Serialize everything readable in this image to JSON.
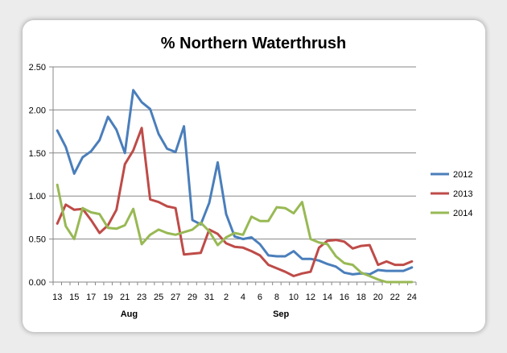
{
  "chart_data": {
    "type": "line",
    "title": "% Northern Waterthrush",
    "xlabel": "",
    "ylabel": "",
    "ylim": [
      0,
      2.5
    ],
    "y_ticks": [
      "0.00",
      "0.50",
      "1.00",
      "1.50",
      "2.00",
      "2.50"
    ],
    "x_tick_labels": [
      "13",
      "15",
      "17",
      "19",
      "21",
      "23",
      "25",
      "27",
      "29",
      "31",
      "2",
      "4",
      "6",
      "8",
      "10",
      "12",
      "14",
      "16",
      "18",
      "20",
      "22",
      "24"
    ],
    "month_labels": [
      "Aug",
      "Sep"
    ],
    "x": [
      "Aug 13",
      "Aug 14",
      "Aug 15",
      "Aug 16",
      "Aug 17",
      "Aug 18",
      "Aug 19",
      "Aug 20",
      "Aug 21",
      "Aug 22",
      "Aug 23",
      "Aug 24",
      "Aug 25",
      "Aug 26",
      "Aug 27",
      "Aug 28",
      "Aug 29",
      "Aug 30",
      "Aug 31",
      "Sep 1",
      "Sep 2",
      "Sep 3",
      "Sep 4",
      "Sep 5",
      "Sep 6",
      "Sep 7",
      "Sep 8",
      "Sep 9",
      "Sep 10",
      "Sep 11",
      "Sep 12",
      "Sep 13",
      "Sep 14",
      "Sep 15",
      "Sep 16",
      "Sep 17",
      "Sep 18",
      "Sep 19",
      "Sep 20",
      "Sep 21",
      "Sep 22",
      "Sep 23",
      "Sep 24"
    ],
    "grid": "horizontal",
    "legend_position": "right",
    "series": [
      {
        "name": "2012",
        "color": "#4a7ebb",
        "values": [
          1.76,
          1.57,
          1.26,
          1.45,
          1.52,
          1.65,
          1.92,
          1.77,
          1.5,
          2.23,
          2.09,
          2.01,
          1.72,
          1.55,
          1.51,
          1.81,
          0.72,
          0.67,
          0.92,
          1.39,
          0.79,
          0.53,
          0.5,
          0.52,
          0.44,
          0.31,
          0.3,
          0.3,
          0.36,
          0.27,
          0.27,
          0.25,
          0.21,
          0.18,
          0.11,
          0.09,
          0.1,
          0.09,
          0.14,
          0.13,
          0.13,
          0.13,
          0.17
        ]
      },
      {
        "name": "2013",
        "color": "#be4b48",
        "values": [
          0.68,
          0.9,
          0.84,
          0.85,
          0.72,
          0.57,
          0.66,
          0.84,
          1.37,
          1.53,
          1.79,
          0.96,
          0.93,
          0.88,
          0.86,
          0.32,
          0.33,
          0.34,
          0.61,
          0.56,
          0.45,
          0.41,
          0.4,
          0.36,
          0.31,
          0.2,
          0.16,
          0.12,
          0.07,
          0.1,
          0.12,
          0.4,
          0.48,
          0.49,
          0.47,
          0.39,
          0.42,
          0.43,
          0.2,
          0.24,
          0.2,
          0.2,
          0.24
        ]
      },
      {
        "name": "2014",
        "color": "#98b954",
        "values": [
          1.13,
          0.65,
          0.5,
          0.86,
          0.81,
          0.79,
          0.63,
          0.62,
          0.66,
          0.85,
          0.44,
          0.55,
          0.61,
          0.57,
          0.55,
          0.58,
          0.61,
          0.69,
          0.59,
          0.43,
          0.52,
          0.57,
          0.55,
          0.76,
          0.71,
          0.71,
          0.87,
          0.86,
          0.8,
          0.93,
          0.5,
          0.46,
          0.44,
          0.3,
          0.22,
          0.2,
          0.11,
          0.07,
          0.03,
          0.0,
          0.0,
          0.0,
          0.0
        ]
      }
    ]
  }
}
